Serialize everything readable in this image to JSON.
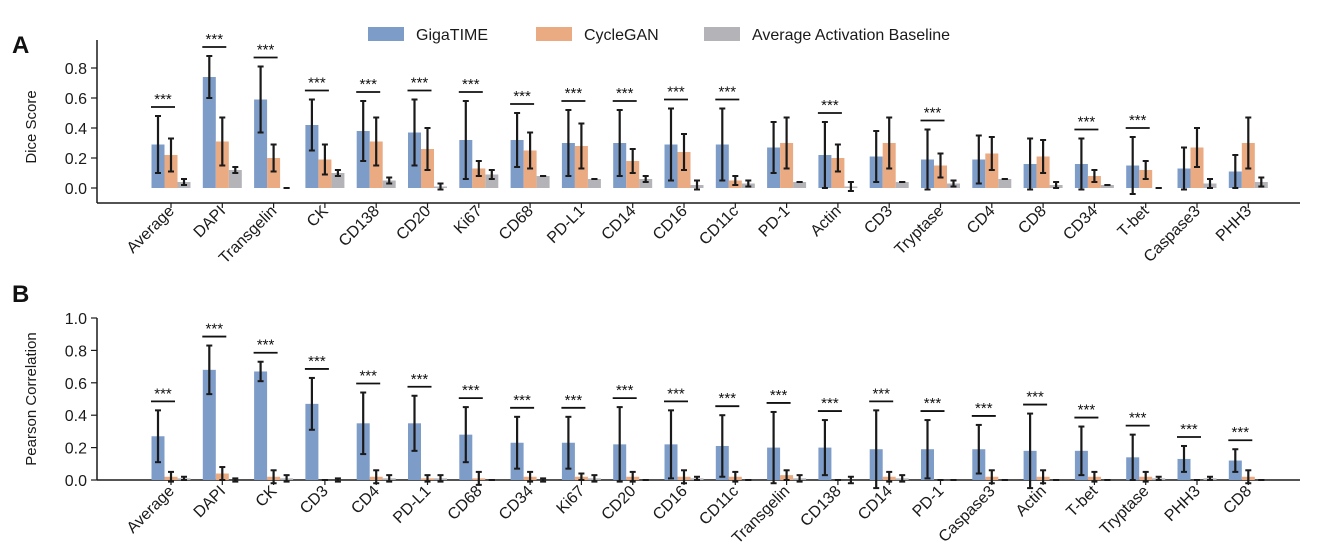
{
  "colors": {
    "gigatime": "#7d9cc8",
    "cyclegan": "#eaaa82",
    "baseline": "#b4b4b8",
    "error": "#1a1a1a"
  },
  "legend": [
    "GigaTIME",
    "CycleGAN",
    "Average Activation Baseline"
  ],
  "chart_data": [
    {
      "type": "bar",
      "panel": "A",
      "ylabel": "Dice Score",
      "ylim": [
        -0.08,
        1.0
      ],
      "yticks": [
        "0.0",
        "0.2",
        "0.4",
        "0.6",
        "0.8"
      ],
      "significance_marker": "***",
      "categories": [
        "Average",
        "DAPI",
        "Transgelin",
        "CK",
        "CD138",
        "CD20",
        "Ki67",
        "CD68",
        "PD-L1",
        "CD14",
        "CD16",
        "CD11c",
        "PD-1",
        "Actin",
        "CD3",
        "Tryptase",
        "CD4",
        "CD8",
        "CD34",
        "T-bet",
        "Caspase3",
        "PHH3"
      ],
      "significant": [
        true,
        true,
        true,
        true,
        true,
        true,
        true,
        true,
        true,
        true,
        true,
        true,
        false,
        true,
        false,
        true,
        false,
        false,
        true,
        true,
        false,
        false
      ],
      "series": [
        {
          "name": "GigaTIME",
          "values": [
            0.29,
            0.74,
            0.59,
            0.42,
            0.38,
            0.37,
            0.32,
            0.32,
            0.3,
            0.3,
            0.29,
            0.29,
            0.27,
            0.22,
            0.21,
            0.19,
            0.19,
            0.16,
            0.16,
            0.15,
            0.13,
            0.11
          ],
          "errors": [
            0.19,
            0.14,
            0.22,
            0.17,
            0.2,
            0.22,
            0.26,
            0.18,
            0.22,
            0.22,
            0.24,
            0.24,
            0.17,
            0.22,
            0.17,
            0.2,
            0.16,
            0.17,
            0.17,
            0.19,
            0.14,
            0.11
          ]
        },
        {
          "name": "CycleGAN",
          "values": [
            0.22,
            0.31,
            0.2,
            0.19,
            0.31,
            0.26,
            0.13,
            0.25,
            0.28,
            0.18,
            0.24,
            0.05,
            0.3,
            0.2,
            0.3,
            0.15,
            0.23,
            0.21,
            0.08,
            0.12,
            0.27,
            0.3
          ],
          "errors": [
            0.11,
            0.16,
            0.09,
            0.1,
            0.16,
            0.14,
            0.05,
            0.12,
            0.15,
            0.08,
            0.12,
            0.03,
            0.17,
            0.09,
            0.17,
            0.08,
            0.11,
            0.11,
            0.04,
            0.06,
            0.13,
            0.17
          ]
        },
        {
          "name": "Average Activation Baseline",
          "values": [
            0.04,
            0.12,
            0.0,
            0.1,
            0.05,
            0.01,
            0.09,
            0.08,
            0.06,
            0.06,
            0.02,
            0.03,
            0.04,
            0.01,
            0.04,
            0.03,
            0.06,
            0.02,
            0.02,
            0.0,
            0.03,
            0.04
          ],
          "errors": [
            0.02,
            0.02,
            0.0,
            0.02,
            0.02,
            0.02,
            0.03,
            0.0,
            0.0,
            0.02,
            0.03,
            0.02,
            0.0,
            0.03,
            0.0,
            0.02,
            0.0,
            0.02,
            0.0,
            0.0,
            0.03,
            0.03
          ]
        }
      ]
    },
    {
      "type": "bar",
      "panel": "B",
      "ylabel": "Pearson Correlation",
      "ylim": [
        0.0,
        1.0
      ],
      "yticks": [
        "0.0",
        "0.2",
        "0.4",
        "0.6",
        "0.8",
        "1.0"
      ],
      "significance_marker": "***",
      "categories": [
        "Average",
        "DAPI",
        "CK",
        "CD3",
        "CD4",
        "PD-L1",
        "CD68",
        "CD34",
        "Ki67",
        "CD20",
        "CD16",
        "CD11c",
        "Transgelin",
        "CD138",
        "CD14",
        "PD-1",
        "Caspase3",
        "Actin",
        "T-bet",
        "Tryptase",
        "PHH3",
        "CD8"
      ],
      "significant": [
        true,
        true,
        true,
        true,
        true,
        true,
        true,
        true,
        true,
        true,
        true,
        true,
        true,
        true,
        true,
        true,
        true,
        true,
        true,
        true,
        true,
        true
      ],
      "series": [
        {
          "name": "GigaTIME",
          "values": [
            0.27,
            0.68,
            0.67,
            0.47,
            0.35,
            0.35,
            0.28,
            0.23,
            0.23,
            0.22,
            0.22,
            0.21,
            0.2,
            0.2,
            0.19,
            0.19,
            0.19,
            0.18,
            0.18,
            0.14,
            0.13,
            0.12
          ],
          "errors": [
            0.16,
            0.15,
            0.06,
            0.16,
            0.19,
            0.17,
            0.17,
            0.16,
            0.16,
            0.23,
            0.21,
            0.19,
            0.22,
            0.17,
            0.24,
            0.18,
            0.15,
            0.23,
            0.15,
            0.14,
            0.08,
            0.07
          ]
        },
        {
          "name": "CycleGAN",
          "values": [
            0.02,
            0.04,
            0.02,
            0.0,
            0.02,
            0.01,
            0.01,
            0.02,
            0.02,
            0.02,
            0.02,
            0.02,
            0.03,
            0.0,
            0.02,
            0.0,
            0.02,
            0.02,
            0.02,
            0.02,
            0.0,
            0.02
          ],
          "errors": [
            0.03,
            0.04,
            0.04,
            0.0,
            0.04,
            0.02,
            0.04,
            0.03,
            0.02,
            0.03,
            0.04,
            0.03,
            0.03,
            0.0,
            0.03,
            0.0,
            0.04,
            0.04,
            0.03,
            0.03,
            0.0,
            0.04
          ]
        },
        {
          "name": "Average Activation Baseline",
          "values": [
            0.01,
            0.0,
            0.01,
            0.0,
            0.01,
            0.01,
            0.0,
            0.0,
            0.01,
            0.0,
            0.01,
            0.0,
            0.01,
            0.0,
            0.01,
            0.0,
            0.0,
            0.0,
            0.0,
            0.01,
            0.01,
            0.0
          ],
          "errors": [
            0.01,
            0.01,
            0.02,
            0.01,
            0.02,
            0.02,
            0.0,
            0.01,
            0.02,
            0.0,
            0.01,
            0.0,
            0.02,
            0.02,
            0.02,
            0.0,
            0.0,
            0.0,
            0.0,
            0.01,
            0.01,
            0.0
          ]
        }
      ]
    }
  ]
}
